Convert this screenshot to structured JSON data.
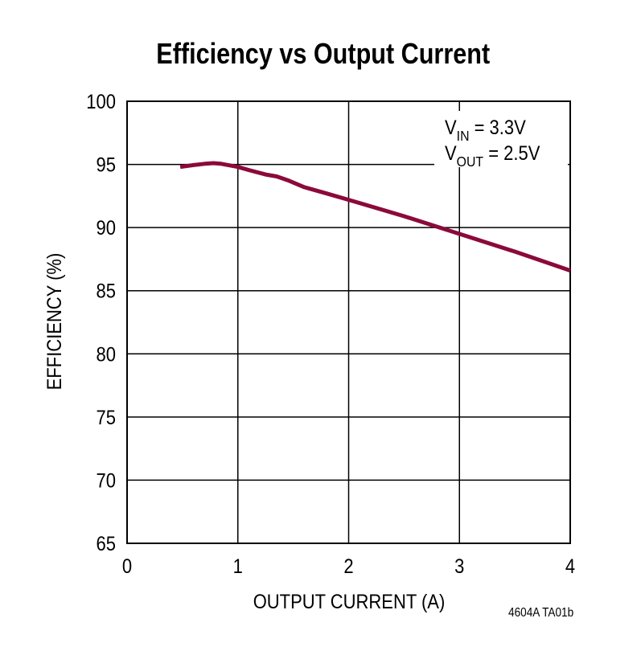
{
  "title": "Efficiency vs Output Current",
  "figure_id": "4604A TA01b",
  "colors": {
    "series": "#8b0a3a",
    "grid": "#000000",
    "background": "#ffffff"
  },
  "chart_data": {
    "type": "line",
    "title": "Efficiency vs Output Current",
    "xlabel": "OUTPUT CURRENT (A)",
    "ylabel": "EFFICIENCY (%)",
    "xlim": [
      0,
      4
    ],
    "ylim": [
      65,
      100
    ],
    "xticks": [
      "0",
      "1",
      "2",
      "3",
      "4"
    ],
    "yticks": [
      "65",
      "70",
      "75",
      "80",
      "85",
      "90",
      "95",
      "100"
    ],
    "grid": true,
    "annotation": {
      "line1": {
        "main": "V",
        "sub": "IN",
        "rest": " = 3.3V"
      },
      "line2": {
        "main": "V",
        "sub": "OUT",
        "rest": " = 2.5V"
      },
      "position": "top-right"
    },
    "series": [
      {
        "x": [
          0.48,
          0.6,
          0.7,
          0.78,
          0.85,
          1.0,
          1.1,
          1.25,
          1.35,
          1.45,
          1.6,
          1.8,
          2.0,
          2.5,
          3.0,
          3.5,
          4.0
        ],
        "y": [
          94.8,
          94.95,
          95.05,
          95.1,
          95.05,
          94.8,
          94.55,
          94.2,
          94.05,
          93.75,
          93.2,
          92.7,
          92.2,
          90.9,
          89.5,
          88.1,
          86.6
        ]
      }
    ]
  }
}
